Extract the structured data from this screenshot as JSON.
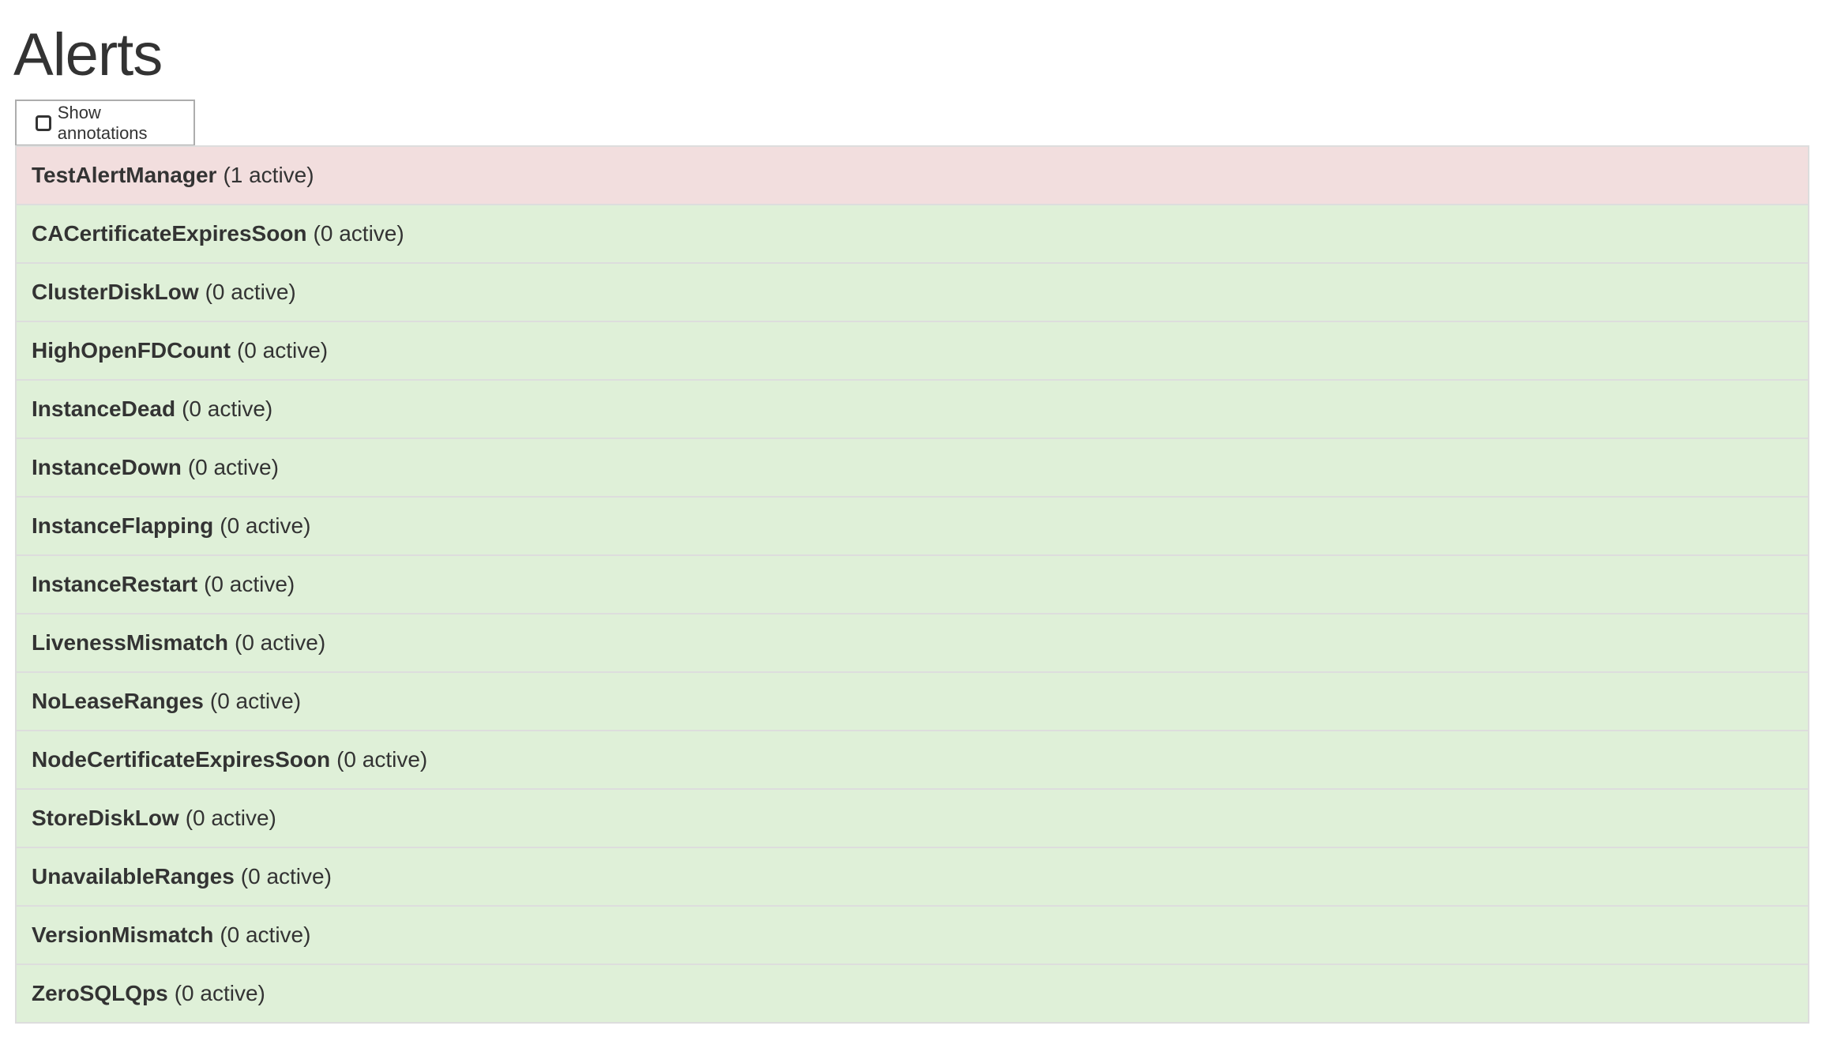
{
  "page_title": "Alerts",
  "show_annotations": {
    "label": "Show annotations",
    "checked": false
  },
  "colors": {
    "firing": "#f2dede",
    "inactive": "#dff0d8",
    "border": "#dddddd"
  },
  "alerts": [
    {
      "name": "TestAlertManager",
      "status": "(1 active)",
      "state": "firing"
    },
    {
      "name": "CACertificateExpiresSoon",
      "status": "(0 active)",
      "state": "inactive"
    },
    {
      "name": "ClusterDiskLow",
      "status": "(0 active)",
      "state": "inactive"
    },
    {
      "name": "HighOpenFDCount",
      "status": "(0 active)",
      "state": "inactive"
    },
    {
      "name": "InstanceDead",
      "status": "(0 active)",
      "state": "inactive"
    },
    {
      "name": "InstanceDown",
      "status": "(0 active)",
      "state": "inactive"
    },
    {
      "name": "InstanceFlapping",
      "status": "(0 active)",
      "state": "inactive"
    },
    {
      "name": "InstanceRestart",
      "status": "(0 active)",
      "state": "inactive"
    },
    {
      "name": "LivenessMismatch",
      "status": "(0 active)",
      "state": "inactive"
    },
    {
      "name": "NoLeaseRanges",
      "status": "(0 active)",
      "state": "inactive"
    },
    {
      "name": "NodeCertificateExpiresSoon",
      "status": "(0 active)",
      "state": "inactive"
    },
    {
      "name": "StoreDiskLow",
      "status": "(0 active)",
      "state": "inactive"
    },
    {
      "name": "UnavailableRanges",
      "status": "(0 active)",
      "state": "inactive"
    },
    {
      "name": "VersionMismatch",
      "status": "(0 active)",
      "state": "inactive"
    },
    {
      "name": "ZeroSQLQps",
      "status": "(0 active)",
      "state": "inactive"
    }
  ]
}
